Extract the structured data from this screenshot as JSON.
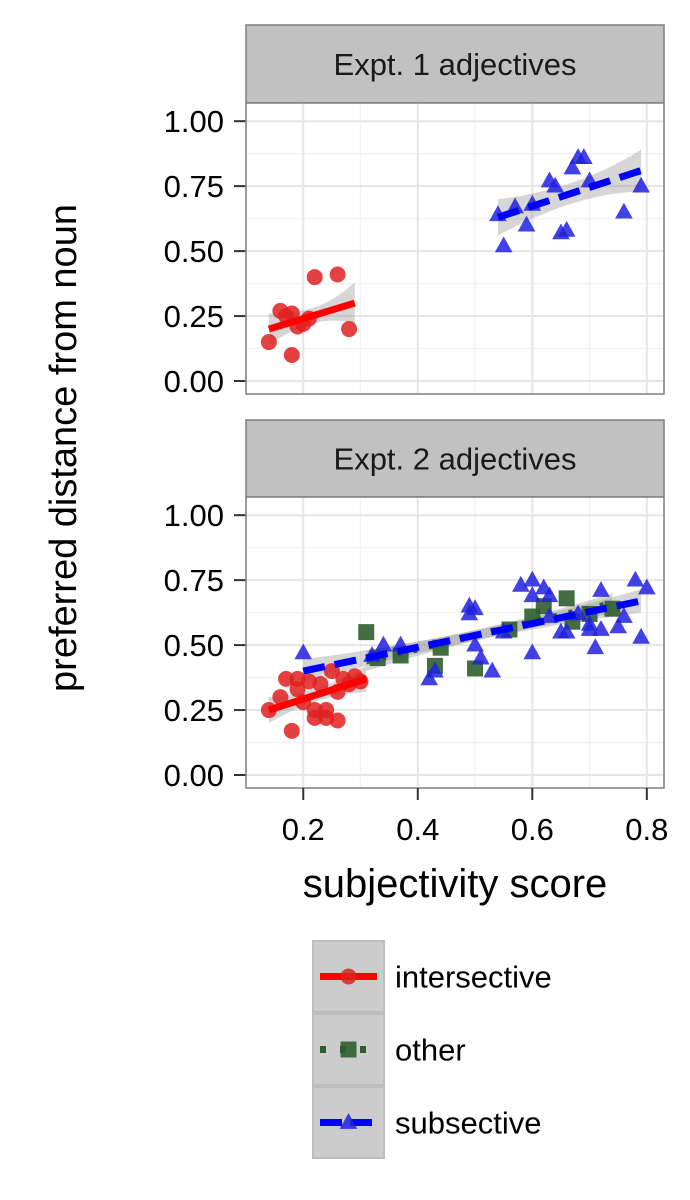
{
  "chart_data": {
    "type": "scatter",
    "ylabel": "preferred distance from noun",
    "xlabel": "subjectivity score",
    "xlim": [
      0.1,
      0.83
    ],
    "ylim": [
      -0.05,
      1.07
    ],
    "x_ticks": [
      0.2,
      0.4,
      0.6,
      0.8
    ],
    "x_tick_labels": [
      "0.2",
      "0.4",
      "0.6",
      "0.8"
    ],
    "y_ticks": [
      0,
      0.25,
      0.5,
      0.75,
      1
    ],
    "y_tick_labels": [
      "0.00",
      "0.25",
      "0.50",
      "0.75",
      "1.00"
    ],
    "grid": true,
    "legend_position": "bottom",
    "legend": [
      {
        "name": "intersective",
        "color": "#ff0000",
        "shape": "circle",
        "line": "solid"
      },
      {
        "name": "other",
        "color": "#2e5e2e",
        "shape": "square",
        "line": "dotted"
      },
      {
        "name": "subsective",
        "color": "#0000ff",
        "shape": "triangle",
        "line": "dashed"
      }
    ],
    "panels": [
      {
        "title": "Expt. 1 adjectives",
        "series": [
          {
            "name": "intersective",
            "points": [
              [
                0.14,
                0.15
              ],
              [
                0.16,
                0.27
              ],
              [
                0.17,
                0.25
              ],
              [
                0.18,
                0.26
              ],
              [
                0.19,
                0.21
              ],
              [
                0.18,
                0.1
              ],
              [
                0.2,
                0.22
              ],
              [
                0.21,
                0.24
              ],
              [
                0.22,
                0.4
              ],
              [
                0.26,
                0.41
              ],
              [
                0.28,
                0.2
              ]
            ],
            "fit": [
              [
                0.14,
                0.2
              ],
              [
                0.29,
                0.3
              ]
            ],
            "band_halfwidth": [
              0.06,
              0.03,
              0.08
            ]
          },
          {
            "name": "subsective",
            "points": [
              [
                0.54,
                0.64
              ],
              [
                0.55,
                0.52
              ],
              [
                0.57,
                0.67
              ],
              [
                0.59,
                0.6
              ],
              [
                0.6,
                0.68
              ],
              [
                0.63,
                0.77
              ],
              [
                0.64,
                0.75
              ],
              [
                0.65,
                0.57
              ],
              [
                0.66,
                0.58
              ],
              [
                0.67,
                0.82
              ],
              [
                0.68,
                0.86
              ],
              [
                0.69,
                0.86
              ],
              [
                0.7,
                0.77
              ],
              [
                0.76,
                0.65
              ],
              [
                0.79,
                0.75
              ]
            ],
            "fit": [
              [
                0.54,
                0.63
              ],
              [
                0.79,
                0.81
              ]
            ],
            "band_halfwidth": [
              0.07,
              0.04,
              0.08
            ]
          }
        ]
      },
      {
        "title": "Expt. 2 adjectives",
        "series": [
          {
            "name": "intersective",
            "points": [
              [
                0.14,
                0.25
              ],
              [
                0.16,
                0.3
              ],
              [
                0.17,
                0.37
              ],
              [
                0.18,
                0.17
              ],
              [
                0.19,
                0.33
              ],
              [
                0.2,
                0.28
              ],
              [
                0.21,
                0.36
              ],
              [
                0.22,
                0.25
              ],
              [
                0.22,
                0.22
              ],
              [
                0.23,
                0.35
              ],
              [
                0.24,
                0.22
              ],
              [
                0.24,
                0.25
              ],
              [
                0.25,
                0.4
              ],
              [
                0.26,
                0.21
              ],
              [
                0.27,
                0.37
              ],
              [
                0.28,
                0.35
              ],
              [
                0.29,
                0.38
              ],
              [
                0.3,
                0.36
              ],
              [
                0.19,
                0.37
              ],
              [
                0.26,
                0.32
              ]
            ],
            "fit": [
              [
                0.14,
                0.25
              ],
              [
                0.31,
                0.37
              ]
            ],
            "band_halfwidth": [
              0.05,
              0.025,
              0.05
            ]
          },
          {
            "name": "other",
            "points": [
              [
                0.31,
                0.55
              ],
              [
                0.33,
                0.45
              ],
              [
                0.37,
                0.46
              ],
              [
                0.43,
                0.42
              ],
              [
                0.44,
                0.49
              ],
              [
                0.5,
                0.41
              ],
              [
                0.56,
                0.56
              ],
              [
                0.6,
                0.61
              ],
              [
                0.62,
                0.65
              ],
              [
                0.66,
                0.68
              ],
              [
                0.67,
                0.59
              ],
              [
                0.7,
                0.62
              ],
              [
                0.74,
                0.64
              ]
            ],
            "fit": [
              [
                0.31,
                0.44
              ],
              [
                0.74,
                0.66
              ]
            ],
            "band_halfwidth": [
              0.04,
              0.02,
              0.04
            ]
          },
          {
            "name": "subsective",
            "points": [
              [
                0.2,
                0.47
              ],
              [
                0.32,
                0.46
              ],
              [
                0.34,
                0.5
              ],
              [
                0.37,
                0.5
              ],
              [
                0.42,
                0.37
              ],
              [
                0.43,
                0.4
              ],
              [
                0.49,
                0.65
              ],
              [
                0.49,
                0.62
              ],
              [
                0.5,
                0.64
              ],
              [
                0.5,
                0.5
              ],
              [
                0.51,
                0.45
              ],
              [
                0.53,
                0.4
              ],
              [
                0.55,
                0.55
              ],
              [
                0.58,
                0.73
              ],
              [
                0.6,
                0.75
              ],
              [
                0.6,
                0.69
              ],
              [
                0.6,
                0.47
              ],
              [
                0.62,
                0.72
              ],
              [
                0.63,
                0.69
              ],
              [
                0.63,
                0.61
              ],
              [
                0.65,
                0.55
              ],
              [
                0.66,
                0.55
              ],
              [
                0.68,
                0.62
              ],
              [
                0.7,
                0.58
              ],
              [
                0.7,
                0.56
              ],
              [
                0.71,
                0.49
              ],
              [
                0.72,
                0.71
              ],
              [
                0.72,
                0.56
              ],
              [
                0.75,
                0.57
              ],
              [
                0.76,
                0.61
              ],
              [
                0.78,
                0.75
              ],
              [
                0.79,
                0.53
              ],
              [
                0.8,
                0.72
              ]
            ],
            "fit": [
              [
                0.2,
                0.4
              ],
              [
                0.79,
                0.67
              ]
            ],
            "band_halfwidth": [
              0.045,
              0.02,
              0.045
            ]
          }
        ]
      }
    ]
  }
}
